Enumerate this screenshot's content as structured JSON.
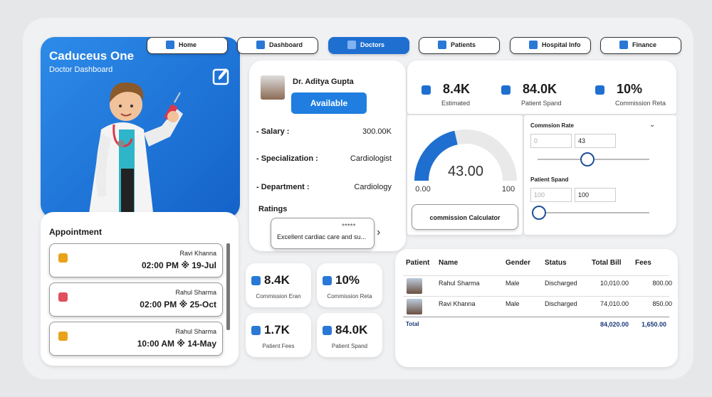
{
  "nav": [
    "Home",
    "Dashboard",
    "Doctors",
    "Patients",
    "Hospital Info",
    "Finance"
  ],
  "active_nav": 2,
  "profile": {
    "title": "Caduceus One",
    "subtitle": "Doctor Dashboard"
  },
  "appointment": {
    "title": "Appointment",
    "items": [
      {
        "name": "Ravi Khanna",
        "when": "02:00 PM ※ 19-Jul"
      },
      {
        "name": "Rahul Sharma",
        "when": "02:00 PM ※ 25-Oct"
      },
      {
        "name": "Rahul Sharma",
        "when": "10:00 AM ※ 14-May"
      }
    ]
  },
  "doctor": {
    "name": "Dr. Aditya Gupta",
    "status": "Available",
    "fields": [
      {
        "label": "- Salary :",
        "value": "300.00K"
      },
      {
        "label": "- Specialization :",
        "value": "Cardiologist"
      },
      {
        "label": "- Department :",
        "value": "Cardiology"
      }
    ],
    "ratings_label": "Ratings",
    "rating_stars": "*****",
    "review": "Excellent cardiac care and su..."
  },
  "kpis": [
    {
      "value": "8.4K",
      "label": "Estimated"
    },
    {
      "value": "84.0K",
      "label": "Patient Spand"
    },
    {
      "value": "10%",
      "label": "Commission Reta"
    }
  ],
  "gauge": {
    "min": {
      "value": 0,
      "label": "0.00"
    },
    "max": 100,
    "value": {
      "value": 43,
      "label": "43.00"
    },
    "button": "commission Calculator"
  },
  "calculator": {
    "rate_label": "Commsion Rate",
    "rate_min": "0",
    "rate_value": "43",
    "spend_label": "Patient Spand",
    "spend_min": "100",
    "spend_value": "100"
  },
  "small_kpis": [
    {
      "value": "8.4K",
      "label": "Commission Eran"
    },
    {
      "value": "10%",
      "label": "Commission Reta"
    },
    {
      "value": "1.7K",
      "label": "Patient Fees"
    },
    {
      "value": "84.0K",
      "label": "Patient Spand"
    }
  ],
  "table": {
    "columns": [
      "Patient",
      "Name",
      "Gender",
      "Status",
      "Total Bill",
      "Fees"
    ],
    "rows": [
      [
        "Rahul Sharma",
        "Male",
        "Discharged",
        "10,010.00",
        "800.00"
      ],
      [
        "Ravi Khanna",
        "Male",
        "Discharged",
        "74,010.00",
        "850.00"
      ]
    ],
    "total": {
      "label": "Total",
      "bill": "84,020.00",
      "fees": "1,650.00"
    }
  }
}
